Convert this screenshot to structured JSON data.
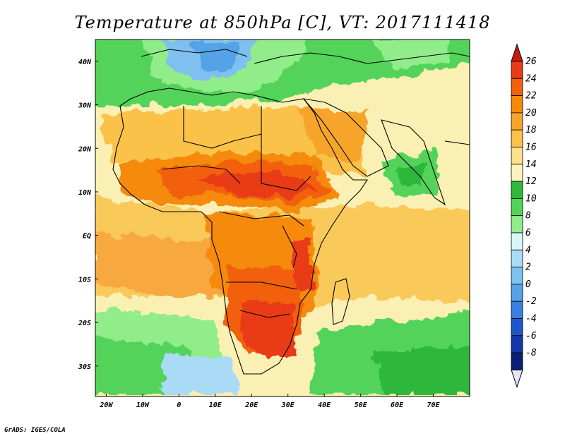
{
  "title": "Temperature at 850hPa [C], VT: 2017111418",
  "footer": "GrADS: IGES/COLA",
  "map": {
    "lat_range": [
      -37,
      45
    ],
    "lon_range": [
      -23,
      80
    ],
    "lat_ticks": [
      {
        "lat": 40,
        "label": "40N"
      },
      {
        "lat": 30,
        "label": "30N"
      },
      {
        "lat": 20,
        "label": "20N"
      },
      {
        "lat": 10,
        "label": "10N"
      },
      {
        "lat": 0,
        "label": "EQ"
      },
      {
        "lat": -10,
        "label": "10S"
      },
      {
        "lat": -20,
        "label": "20S"
      },
      {
        "lat": -30,
        "label": "30S"
      }
    ],
    "lon_ticks": [
      {
        "lon": -20,
        "label": "20W"
      },
      {
        "lon": -10,
        "label": "10W"
      },
      {
        "lon": 0,
        "label": "0"
      },
      {
        "lon": 10,
        "label": "10E"
      },
      {
        "lon": 20,
        "label": "20E"
      },
      {
        "lon": 30,
        "label": "30E"
      },
      {
        "lon": 40,
        "label": "40E"
      },
      {
        "lon": 50,
        "label": "50E"
      },
      {
        "lon": 60,
        "label": "60E"
      },
      {
        "lon": 70,
        "label": "70E"
      }
    ]
  },
  "colorbar": {
    "labels": [
      "26",
      "24",
      "22",
      "20",
      "18",
      "16",
      "14",
      "12",
      "10",
      "8",
      "6",
      "4",
      "2",
      "0",
      "-2",
      "-4",
      "-6",
      "-8"
    ],
    "colors": [
      "#e83a14",
      "#f2600a",
      "#f58a0a",
      "#f7a52a",
      "#fbc24a",
      "#fde08a",
      "#fbf3bc",
      "#2eb83b",
      "#52d35a",
      "#91ec8a",
      "#d9f6f4",
      "#a9dbf7",
      "#7fc0f0",
      "#55a2e7",
      "#3a7ee0",
      "#2056c9",
      "#1638a6",
      "#0b1f74"
    ],
    "top_arrow_color": "#c81e0e",
    "bottom_arrow_color": "#e9e4f7"
  }
}
